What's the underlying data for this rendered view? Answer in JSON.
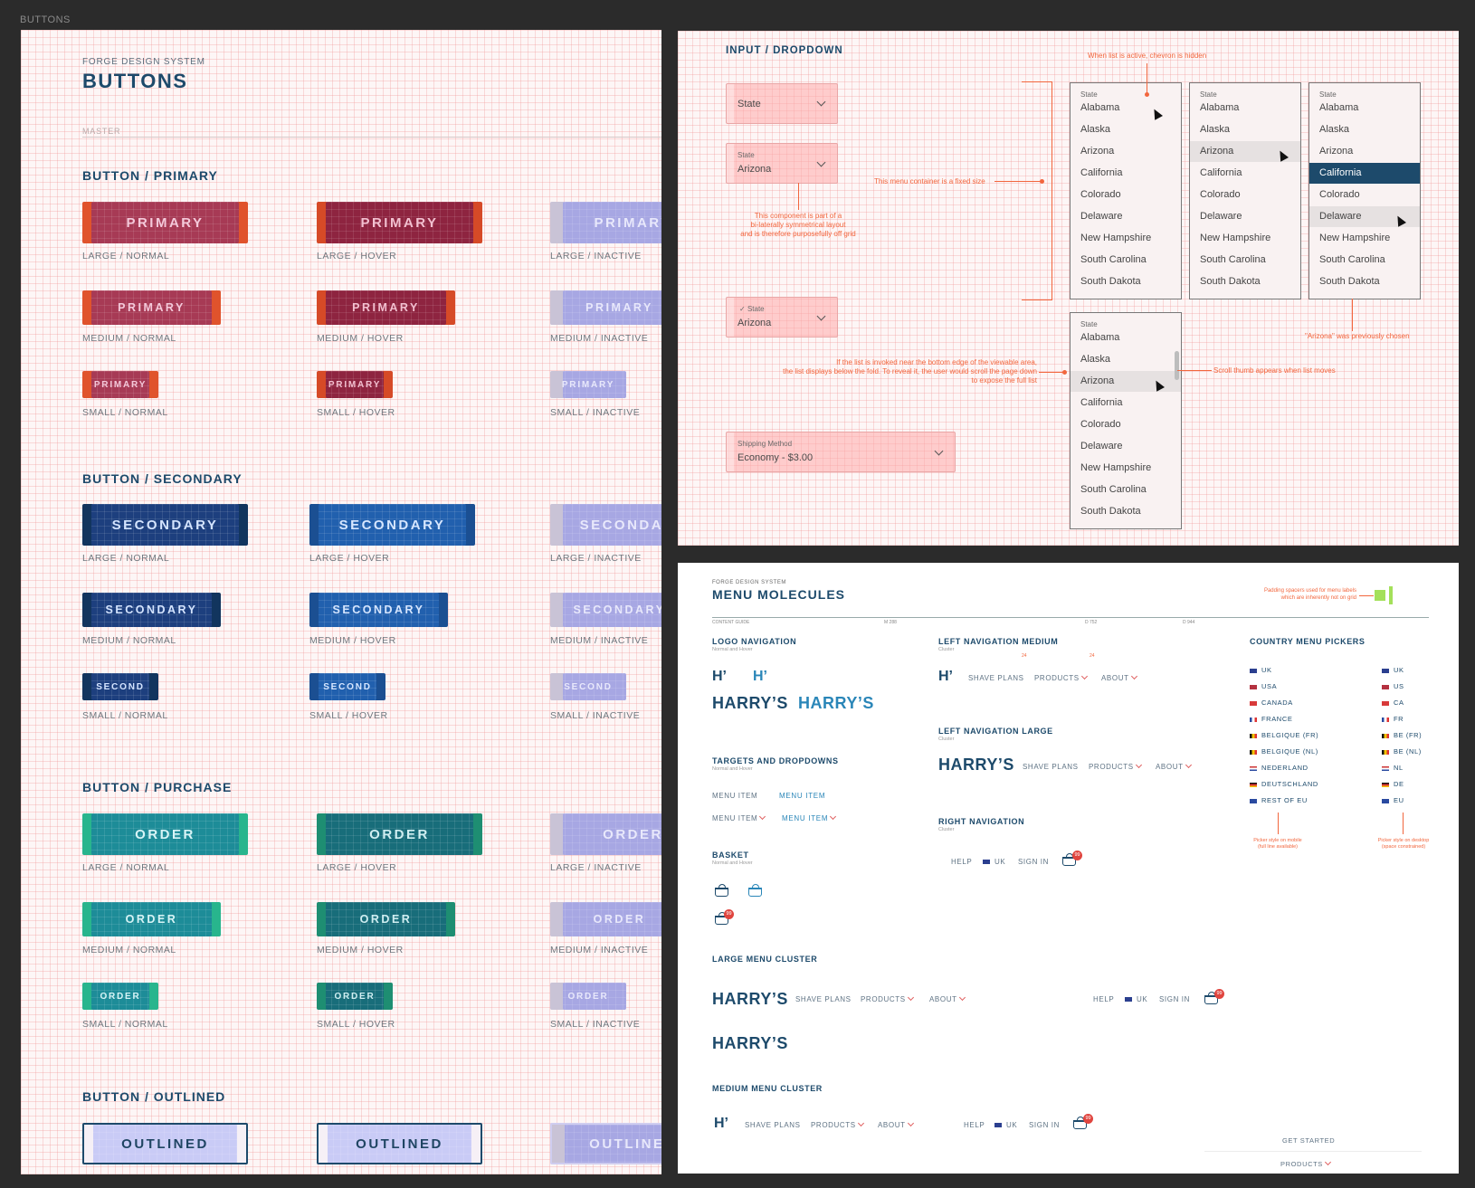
{
  "canvas": {
    "label": "BUTTONS"
  },
  "buttons_board": {
    "kicker": "FORGE DESIGN SYSTEM",
    "title": "BUTTONS",
    "master": "MASTER",
    "primary": {
      "heading": "BUTTON / PRIMARY",
      "label": "PRIMARY",
      "captions": [
        "LARGE / NORMAL",
        "LARGE / HOVER",
        "LARGE / INACTIVE",
        "MEDIUM / NORMAL",
        "MEDIUM / HOVER",
        "MEDIUM / INACTIVE",
        "SMALL / NORMAL",
        "SMALL / HOVER",
        "SMALL / INACTIVE"
      ]
    },
    "secondary": {
      "heading": "BUTTON / SECONDARY",
      "label": "SECONDARY",
      "label_small": "SECOND",
      "captions": [
        "LARGE / NORMAL",
        "LARGE / HOVER",
        "LARGE / INACTIVE",
        "MEDIUM / NORMAL",
        "MEDIUM / HOVER",
        "MEDIUM / INACTIVE",
        "SMALL / NORMAL",
        "SMALL / HOVER",
        "SMALL / INACTIVE"
      ]
    },
    "purchase": {
      "heading": "BUTTON / PURCHASE",
      "label": "ORDER",
      "captions": [
        "LARGE / NORMAL",
        "LARGE / HOVER",
        "LARGE / INACTIVE",
        "MEDIUM / NORMAL",
        "MEDIUM / HOVER",
        "MEDIUM / INACTIVE",
        "SMALL / NORMAL",
        "SMALL / HOVER",
        "SMALL / INACTIVE"
      ]
    },
    "outlined": {
      "heading": "BUTTON / OUTLINED",
      "label": "OUTLINED"
    }
  },
  "dropdown_board": {
    "title": "INPUT / DROPDOWN",
    "state_label": "State",
    "state_value": "Arizona",
    "shipping_label": "Shipping Method",
    "shipping_value": "Economy - $3.00",
    "states": [
      "Alabama",
      "Alaska",
      "Arizona",
      "California",
      "Colorado",
      "Delaware",
      "New Hampshire",
      "South Carolina",
      "South Dakota"
    ],
    "notes": {
      "active_hidden": "When list is active, chevron is hidden",
      "fixed_size": "This menu container is a fixed size",
      "symmetrical": [
        "This component is part of a",
        "bi-laterally symmetrical layout",
        "and is therefore purposefully off grid"
      ],
      "below_fold": [
        "If the list is invoked near the bottom edge of the viewable area,",
        "the list displays below the fold. To reveal it, the user would scroll the page down",
        "to expose the full list"
      ],
      "scroll_thumb": "Scroll thumb appears when list moves",
      "previously_chosen": "\"Arizona\" was previously chosen"
    }
  },
  "menu_board": {
    "kicker": "FORGE DESIGN SYSTEM",
    "title": "MENU MOLECULES",
    "padding_note": [
      "Padding spacers used for menu labels",
      "which are inherently not on grid"
    ],
    "guide_labels": [
      "CONTENT GUIDE",
      "M 288",
      "D 752",
      "D 944"
    ],
    "logo_nav": {
      "heading": "LOGO NAVIGATION",
      "sub": "Normal and Hover",
      "mark": "H’",
      "wordmark": "HARRY’S"
    },
    "left_nav_medium": {
      "heading": "LEFT NAVIGATION MEDIUM",
      "sub": "Cluster",
      "spacer": "24"
    },
    "left_nav_large": {
      "heading": "LEFT NAVIGATION LARGE",
      "sub": "Cluster"
    },
    "right_nav": {
      "heading": "RIGHT NAVIGATION",
      "sub": "Cluster"
    },
    "targets": {
      "heading": "TARGETS AND DROPDOWNS",
      "sub": "Normal and Hover",
      "item": "MENU ITEM"
    },
    "basket": {
      "heading": "BASKET",
      "sub": "Normal and Hover",
      "count": "99"
    },
    "nav_items": {
      "shave_plans": "SHAVE PLANS",
      "products": "PRODUCTS",
      "about": "ABOUT",
      "help": "HELP",
      "uk": "UK",
      "sign_in": "SIGN IN"
    },
    "large_cluster": {
      "heading": "LARGE MENU CLUSTER"
    },
    "medium_cluster": {
      "heading": "MEDIUM MENU CLUSTER",
      "get_started": "GET STARTED",
      "products": "PRODUCTS"
    },
    "country": {
      "heading": "COUNTRY MENU PICKERS",
      "long": [
        "UK",
        "USA",
        "CANADA",
        "FRANCE",
        "BELGIQUE (FR)",
        "BELGIQUE (NL)",
        "NEDERLAND",
        "DEUTSCHLAND",
        "REST OF EU"
      ],
      "short": [
        "UK",
        "US",
        "CA",
        "FR",
        "BE (FR)",
        "BE (NL)",
        "NL",
        "DE",
        "EU"
      ],
      "note_mobile": [
        "Picker style on mobile",
        "(full line available)"
      ],
      "note_desktop": [
        "Picker style on desktop",
        "(space constrained)"
      ]
    },
    "colors": {
      "navy": "#1d4a6b",
      "orange_note": "#f2663d",
      "badge": "#e0453f"
    }
  }
}
